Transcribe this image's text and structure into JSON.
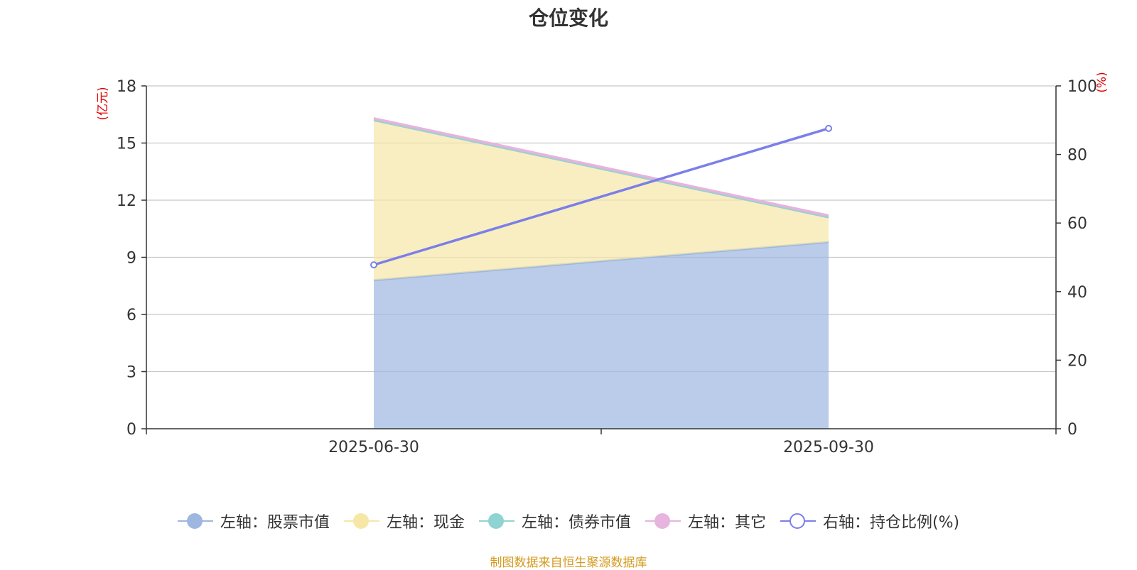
{
  "chart_data": {
    "type": "area",
    "title": "仓位变化",
    "categories": [
      "2025-06-30",
      "2025-09-30"
    ],
    "left_axis": {
      "unit_label": "(亿元)",
      "ylim": [
        0,
        18
      ],
      "ticks": [
        "0",
        "3",
        "6",
        "9",
        "12",
        "15",
        "18"
      ]
    },
    "right_axis": {
      "unit_label": "(%)",
      "ylim": [
        0,
        100
      ],
      "ticks": [
        "0",
        "20",
        "40",
        "60",
        "80",
        "100"
      ]
    },
    "series": [
      {
        "name": "左轴：股票市值",
        "axis": "left",
        "stack": true,
        "values": [
          7.8,
          9.8
        ],
        "color": "#9db7e0"
      },
      {
        "name": "左轴：现金",
        "axis": "left",
        "stack": true,
        "values": [
          8.4,
          1.3
        ],
        "color": "#f7e7a6"
      },
      {
        "name": "左轴：债券市值",
        "axis": "left",
        "stack": true,
        "values": [
          0,
          0
        ],
        "color": "#8fd3d3"
      },
      {
        "name": "左轴：其它",
        "axis": "left",
        "stack": true,
        "values": [
          0.1,
          0.1
        ],
        "color": "#e6b4dc"
      },
      {
        "name": "右轴：持仓比例(%)",
        "axis": "right",
        "type": "line",
        "values": [
          47.8,
          87.6
        ],
        "color": "#7b7fe8"
      }
    ],
    "grid": true,
    "legend_position": "bottom"
  },
  "source_note": "制图数据来自恒生聚源数据库"
}
